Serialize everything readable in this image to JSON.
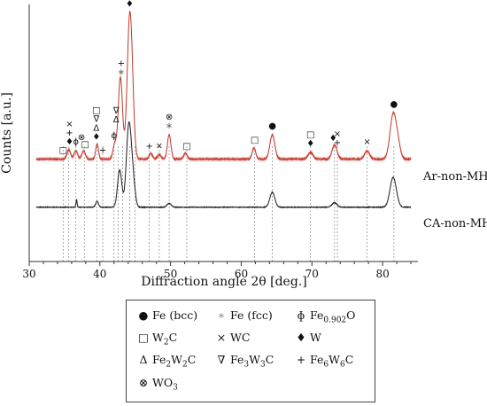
{
  "chart_data": {
    "type": "line",
    "xlabel": "Diffraction angle 2θ [deg.]",
    "ylabel": "Counts [a.u.]",
    "xlim": [
      30,
      85
    ],
    "xticks": [
      30,
      40,
      50,
      60,
      70,
      80
    ],
    "grid": false,
    "legend_position": "bottom",
    "series": [
      {
        "name": "Ar-non-MHP",
        "color": "#c0392b",
        "band_color": "#f2bcbc",
        "baseline": 0.6,
        "peaks": [
          [
            35.6,
            2.5,
            0.25
          ],
          [
            36.6,
            2.2,
            0.25
          ],
          [
            37.7,
            2.2,
            0.25
          ],
          [
            39.6,
            4.0,
            0.2
          ],
          [
            42.1,
            4.0,
            0.25
          ],
          [
            42.9,
            22.0,
            0.3
          ],
          [
            44.2,
            36.0,
            0.35
          ],
          [
            44.6,
            8.0,
            0.3
          ],
          [
            47.2,
            1.5,
            0.25
          ],
          [
            48.4,
            1.2,
            0.25
          ],
          [
            49.8,
            6.5,
            0.25
          ],
          [
            52.1,
            1.5,
            0.25
          ],
          [
            61.8,
            3.0,
            0.25
          ],
          [
            64.4,
            6.5,
            0.35
          ],
          [
            69.8,
            1.8,
            0.35
          ],
          [
            73.2,
            3.8,
            0.35
          ],
          [
            77.8,
            2.2,
            0.35
          ],
          [
            81.5,
            12.0,
            0.45
          ],
          [
            82.2,
            3.0,
            0.35
          ]
        ]
      },
      {
        "name": "CA-non-MHP",
        "color": "#1a1a1a",
        "baseline": 0.3,
        "peaks": [
          [
            36.7,
            2.0,
            0.08
          ],
          [
            39.6,
            1.6,
            0.2
          ],
          [
            42.8,
            10.0,
            0.3
          ],
          [
            44.1,
            22.0,
            0.35
          ],
          [
            44.7,
            6.0,
            0.3
          ],
          [
            49.8,
            1.0,
            0.3
          ],
          [
            64.4,
            4.0,
            0.35
          ],
          [
            73.2,
            1.2,
            0.35
          ],
          [
            81.5,
            8.0,
            0.45
          ]
        ]
      }
    ],
    "reference_lines": [
      34.8,
      35.6,
      36.6,
      37.8,
      39.6,
      40.4,
      42.0,
      42.6,
      43.2,
      44.2,
      45.0,
      47.0,
      48.4,
      49.8,
      52.3,
      61.9,
      64.4,
      69.8,
      73.2,
      73.6,
      77.8,
      81.6
    ],
    "annotations": [
      {
        "x": 34.8,
        "row": 1,
        "phase": "W2C"
      },
      {
        "x": 35.7,
        "row": 1,
        "phase": "W"
      },
      {
        "x": 35.7,
        "row": 2,
        "phase": "Fe6W6C"
      },
      {
        "x": 35.7,
        "row": 3,
        "phase": "WC"
      },
      {
        "x": 36.6,
        "row": 1,
        "phase": "Fe0.902O"
      },
      {
        "x": 37.4,
        "row": 2,
        "phase": "WO3"
      },
      {
        "x": 37.9,
        "row": 1,
        "phase": "W2C"
      },
      {
        "x": 39.5,
        "row": 1,
        "phase": "W"
      },
      {
        "x": 39.5,
        "row": 2,
        "phase": "Fe2W2C"
      },
      {
        "x": 39.5,
        "row": 3,
        "phase": "Fe3W3C"
      },
      {
        "x": 39.5,
        "row": 4,
        "phase": "W2C"
      },
      {
        "x": 40.4,
        "row": 1,
        "phase": "Fe6W6C"
      },
      {
        "x": 42.0,
        "row": 1,
        "phase": "Fe0.902O"
      },
      {
        "x": 42.3,
        "row": 2,
        "phase": "Fe2W2C"
      },
      {
        "x": 42.3,
        "row": 3,
        "phase": "Fe3W3C"
      },
      {
        "x": 43.0,
        "row": 1,
        "phase": "Fe (fcc)"
      },
      {
        "x": 43.0,
        "row": 2,
        "phase": "Fe6W6C"
      },
      {
        "x": 44.2,
        "row": 1,
        "phase": "W"
      },
      {
        "x": 44.2,
        "row": 2,
        "phase": "Fe (bcc)"
      },
      {
        "x": 47.0,
        "row": 1,
        "phase": "Fe6W6C"
      },
      {
        "x": 48.4,
        "row": 1,
        "phase": "WC"
      },
      {
        "x": 49.8,
        "row": 1,
        "phase": "Fe (fcc)"
      },
      {
        "x": 49.8,
        "row": 2,
        "phase": "WO3"
      },
      {
        "x": 52.3,
        "row": 1,
        "phase": "W2C"
      },
      {
        "x": 61.9,
        "row": 1,
        "phase": "W2C"
      },
      {
        "x": 64.4,
        "row": 1,
        "phase": "Fe (bcc)"
      },
      {
        "x": 69.8,
        "row": 1,
        "phase": "W"
      },
      {
        "x": 69.8,
        "row": 2,
        "phase": "W2C"
      },
      {
        "x": 73.0,
        "row": 1,
        "phase": "W"
      },
      {
        "x": 73.6,
        "row": 1,
        "phase": "Fe6W6C"
      },
      {
        "x": 73.6,
        "row": 2,
        "phase": "WC"
      },
      {
        "x": 77.8,
        "row": 1,
        "phase": "WC"
      },
      {
        "x": 81.6,
        "row": 1,
        "phase": "Fe (bcc)"
      }
    ],
    "legend": [
      {
        "symbol": "●",
        "label": "Fe (bcc)",
        "phase": "Fe (bcc)"
      },
      {
        "symbol": "∗",
        "label": "Fe (fcc)",
        "phase": "Fe (fcc)"
      },
      {
        "symbol": "ɸ",
        "label": "Fe",
        "sub": "0.902",
        "suffix": "O",
        "phase": "Fe0.902O"
      },
      {
        "symbol": "□",
        "label": "W",
        "sub": "2",
        "suffix": "C",
        "phase": "W2C"
      },
      {
        "symbol": "×",
        "label": "WC",
        "phase": "WC"
      },
      {
        "symbol": "♦",
        "label": "W",
        "phase": "W"
      },
      {
        "symbol": "Δ",
        "label": "Fe",
        "sub": "2",
        "suffix": "W",
        "sub2": "2",
        "suffix2": "C",
        "phase": "Fe2W2C"
      },
      {
        "symbol": "∇",
        "label": "Fe",
        "sub": "3",
        "suffix": "W",
        "sub2": "3",
        "suffix2": "C",
        "phase": "Fe3W3C"
      },
      {
        "symbol": "+",
        "label": "Fe",
        "sub": "6",
        "suffix": "W",
        "sub2": "6",
        "suffix2": "C",
        "phase": "Fe6W6C"
      },
      {
        "symbol": "⊗",
        "label": "WO",
        "sub": "3",
        "suffix": "",
        "phase": "WO3"
      }
    ]
  }
}
